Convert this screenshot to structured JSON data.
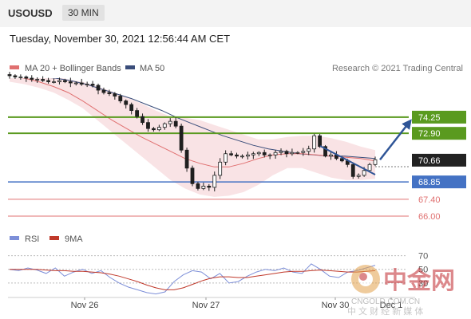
{
  "header": {
    "symbol": "USOUSD",
    "timeframe": "30 MIN",
    "datetime": "Tuesday, November 30, 2021 12:56:44 AM CET"
  },
  "legend": {
    "ma20": "MA 20 + Bollinger Bands",
    "ma50": "MA 50",
    "credit": "Research © 2021 Trading Central",
    "rsi": "RSI",
    "ma9": "9MA"
  },
  "watermark": {
    "big": "中金网",
    "url": "CNGOLD.COM.CN",
    "sub": "中 文 财 经 新 媒 体"
  },
  "colors": {
    "candle": "#1f1f1f",
    "ma20": "#e07070",
    "ma50": "#3a4d7a",
    "band_fill": "#f7d9dc",
    "resistance": "#5a9a1f",
    "support": "#4472c4",
    "target": "#e07070",
    "arrow": "#2f5597",
    "rsi": "#7d8fd8",
    "ma9": "#c0392b"
  },
  "chart_data": [
    {
      "type": "candlestick",
      "x_labels": [
        "Nov 26",
        "Nov 27",
        "Nov 30",
        "Dec 1"
      ],
      "ylim": [
        65.2,
        77.5
      ],
      "levels": [
        {
          "value": 74.25,
          "label": "74.25",
          "kind": "resistance"
        },
        {
          "value": 72.9,
          "label": "72.90",
          "kind": "resistance"
        },
        {
          "value": 70.66,
          "label": "70.66",
          "kind": "current"
        },
        {
          "value": 68.85,
          "label": "68.85",
          "kind": "pivot"
        },
        {
          "value": 67.4,
          "label": "67.40",
          "kind": "target"
        },
        {
          "value": 66.0,
          "label": "66.00",
          "kind": "target"
        }
      ],
      "close_path": [
        77.7,
        77.6,
        77.6,
        77.5,
        77.4,
        77.4,
        77.3,
        77.2,
        77.2,
        77.3,
        77.2,
        77.1,
        77.1,
        77.0,
        77.0,
        76.9,
        76.5,
        76.3,
        76.2,
        76.0,
        75.6,
        75.3,
        74.8,
        74.3,
        73.8,
        73.3,
        73.2,
        73.4,
        73.7,
        73.9,
        73.5,
        71.5,
        70.0,
        68.7,
        68.3,
        68.5,
        68.4,
        69.4,
        70.5,
        71.2,
        71.1,
        71.0,
        71.0,
        71.1,
        71.2,
        71.3,
        71.1,
        71.1,
        71.3,
        71.4,
        71.2,
        71.3,
        71.3,
        71.4,
        71.6,
        72.7,
        71.8,
        71.0,
        71.1,
        70.8,
        70.6,
        70.3,
        69.3,
        69.4,
        69.8,
        70.3,
        70.7
      ],
      "ma20_path": [
        77.7,
        77.5,
        77.2,
        76.8,
        76.3,
        75.6,
        74.8,
        74.0,
        73.3,
        72.6,
        72.0,
        71.4,
        70.8,
        70.4,
        70.1,
        70.1,
        70.4,
        70.8,
        71.1,
        71.2,
        71.2,
        71.1,
        71.0,
        70.9,
        70.8,
        70.6
      ],
      "ma50_path": [
        77.8,
        77.7,
        77.6,
        77.5,
        77.3,
        77.0,
        76.6,
        76.2,
        75.8,
        75.3,
        74.8,
        74.2,
        73.7,
        73.2,
        72.7,
        72.3,
        71.9,
        71.6,
        71.4,
        71.2,
        71.1,
        71.0,
        71.0,
        70.9,
        70.8
      ],
      "band_upper": [
        78.0,
        78.0,
        77.9,
        77.7,
        77.4,
        77.2,
        76.8,
        76.4,
        75.9,
        75.4,
        74.8,
        74.3,
        74.2,
        74.0,
        73.6,
        73.2,
        72.8,
        72.4,
        72.4,
        72.6,
        72.7,
        72.7,
        72.5,
        72.2,
        71.8,
        71.5
      ],
      "band_lower": [
        77.2,
        77.0,
        76.7,
        76.3,
        75.7,
        75.0,
        74.0,
        73.0,
        72.0,
        71.0,
        70.0,
        69.0,
        68.3,
        67.8,
        67.6,
        67.7,
        68.0,
        68.6,
        69.4,
        70.0,
        70.0,
        69.6,
        69.2,
        69.0,
        69.0,
        69.1
      ],
      "projection": [
        70.7,
        73.9
      ]
    },
    {
      "type": "line",
      "x_labels": [
        "Nov 26",
        "Nov 27",
        "Nov 30",
        "Dec 1"
      ],
      "ylim": [
        10,
        80
      ],
      "ticks": [
        {
          "value": 70,
          "label": "70"
        },
        {
          "value": 50,
          "label": "50"
        },
        {
          "value": 30,
          "label": "30"
        }
      ],
      "series": [
        {
          "name": "RSI",
          "values": [
            50,
            48,
            52,
            49,
            44,
            52,
            40,
            46,
            50,
            44,
            48,
            38,
            30,
            24,
            20,
            16,
            14,
            17,
            32,
            42,
            48,
            46,
            36,
            44,
            30,
            32,
            40,
            46,
            50,
            48,
            52,
            46,
            44,
            58,
            50,
            40,
            38,
            46,
            48,
            52,
            56
          ]
        },
        {
          "name": "9MA",
          "values": [
            50,
            50,
            50,
            50,
            49,
            48,
            48,
            47,
            47,
            46,
            45,
            43,
            40,
            36,
            32,
            27,
            23,
            20,
            20,
            23,
            28,
            33,
            37,
            39,
            39,
            38,
            38,
            40,
            42,
            44,
            46,
            47,
            47,
            48,
            49,
            48,
            47,
            46,
            46,
            47,
            48
          ]
        }
      ]
    }
  ]
}
